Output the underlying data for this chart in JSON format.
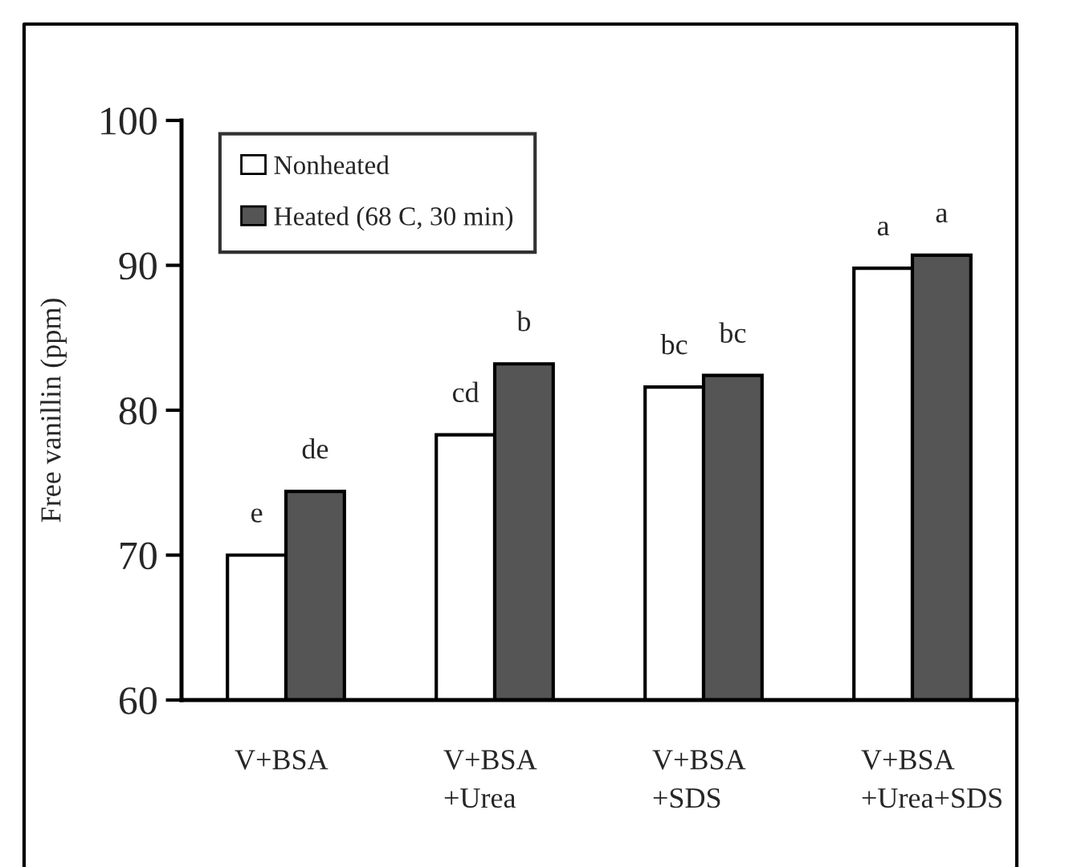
{
  "chart_data": {
    "type": "bar",
    "ylabel": "Free vanillin (ppm)",
    "categories": [
      "V+BSA",
      "V+BSA\n+Urea",
      "V+BSA\n+SDS",
      "V+BSA\n+Urea+SDS"
    ],
    "series": [
      {
        "name": "Nonheated",
        "color": "#ffffff",
        "values": [
          70.0,
          78.3,
          81.6,
          89.8
        ],
        "value_labels": [
          "e",
          "cd",
          "bc",
          "a"
        ]
      },
      {
        "name": "Heated (68 C, 30 min)",
        "color": "#555555",
        "values": [
          74.4,
          83.2,
          82.4,
          90.7
        ],
        "value_labels": [
          "de",
          "b",
          "bc",
          "a"
        ]
      }
    ],
    "ylim": [
      60,
      100
    ],
    "yticks": [
      60,
      70,
      80,
      90,
      100
    ],
    "grid": false,
    "legend": "top left"
  }
}
